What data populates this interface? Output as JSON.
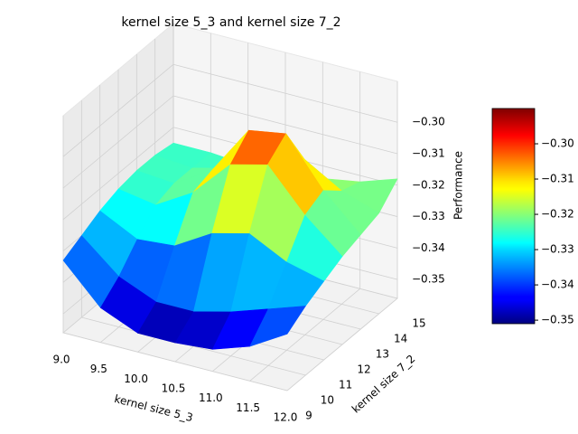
{
  "chart_data": {
    "type": "surface",
    "title": "kernel size 5_3 and kernel size 7_2",
    "xlabel": "kernel size 5_3",
    "ylabel": "kernel size 7_2",
    "zlabel": "Performance",
    "x": [
      9,
      9.5,
      10,
      10.5,
      11,
      11.5,
      12
    ],
    "y": [
      9,
      10,
      11,
      12,
      13,
      14,
      15
    ],
    "z": [
      [
        -0.333,
        -0.345,
        -0.35,
        -0.35,
        -0.349,
        -0.345,
        -0.338
      ],
      [
        -0.33,
        -0.34,
        -0.345,
        -0.345,
        -0.342,
        -0.338,
        -0.334
      ],
      [
        -0.327,
        -0.333,
        -0.332,
        -0.325,
        -0.322,
        -0.328,
        -0.331
      ],
      [
        -0.325,
        -0.327,
        -0.32,
        -0.308,
        -0.305,
        -0.318,
        -0.328
      ],
      [
        -0.324,
        -0.325,
        -0.318,
        -0.302,
        -0.3,
        -0.315,
        -0.326
      ],
      [
        -0.324,
        -0.325,
        -0.322,
        -0.314,
        -0.313,
        -0.32,
        -0.324
      ],
      [
        -0.325,
        -0.325,
        -0.326,
        -0.325,
        -0.324,
        -0.322,
        -0.318
      ]
    ],
    "xlim": [
      9,
      12
    ],
    "ylim": [
      9,
      15
    ],
    "zlim": [
      -0.356,
      -0.287
    ],
    "xticks": [
      {
        "value": 9,
        "label": "9.0"
      },
      9.5,
      {
        "value": 10,
        "label": "10.0"
      },
      10.5,
      {
        "value": 11,
        "label": "11.0"
      },
      11.5,
      {
        "value": 12,
        "label": "12.0"
      }
    ],
    "yticks": [
      9,
      10,
      11,
      12,
      13,
      14,
      15
    ],
    "zticks": [
      {
        "value": -0.35,
        "label": "−0.35"
      },
      {
        "value": -0.34,
        "label": "−0.34"
      },
      {
        "value": -0.33,
        "label": "−0.33"
      },
      {
        "value": -0.32,
        "label": "−0.32"
      },
      {
        "value": -0.31,
        "label": "−0.31"
      },
      {
        "value": -0.3,
        "label": "−0.30"
      }
    ],
    "clim": [
      -0.351,
      -0.29
    ],
    "cbar_ticks": [
      {
        "value": -0.35,
        "label": "−0.35"
      },
      {
        "value": -0.34,
        "label": "−0.34"
      },
      {
        "value": -0.33,
        "label": "−0.33"
      },
      {
        "value": -0.32,
        "label": "−0.32"
      },
      {
        "value": -0.31,
        "label": "−0.31"
      },
      {
        "value": -0.3,
        "label": "−0.30"
      }
    ],
    "colormap": "jet",
    "grid": true
  }
}
